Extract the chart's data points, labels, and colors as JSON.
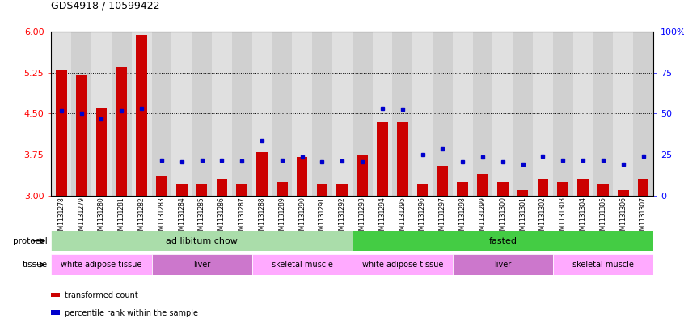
{
  "title": "GDS4918 / 10599422",
  "samples": [
    "GSM1131278",
    "GSM1131279",
    "GSM1131280",
    "GSM1131281",
    "GSM1131282",
    "GSM1131283",
    "GSM1131284",
    "GSM1131285",
    "GSM1131286",
    "GSM1131287",
    "GSM1131288",
    "GSM1131289",
    "GSM1131290",
    "GSM1131291",
    "GSM1131292",
    "GSM1131293",
    "GSM1131294",
    "GSM1131295",
    "GSM1131296",
    "GSM1131297",
    "GSM1131298",
    "GSM1131299",
    "GSM1131300",
    "GSM1131301",
    "GSM1131302",
    "GSM1131303",
    "GSM1131304",
    "GSM1131305",
    "GSM1131306",
    "GSM1131307"
  ],
  "bar_values": [
    5.3,
    5.2,
    4.6,
    5.35,
    5.95,
    3.35,
    3.2,
    3.2,
    3.3,
    3.2,
    3.8,
    3.25,
    3.7,
    3.2,
    3.2,
    3.75,
    4.35,
    4.35,
    3.2,
    3.55,
    3.25,
    3.4,
    3.25,
    3.1,
    3.3,
    3.25,
    3.3,
    3.2,
    3.1,
    3.3
  ],
  "blue_values": [
    4.55,
    4.5,
    4.4,
    4.55,
    4.6,
    3.65,
    3.62,
    3.65,
    3.65,
    3.63,
    4.0,
    3.65,
    3.7,
    3.62,
    3.63,
    3.62,
    4.6,
    4.58,
    3.75,
    3.85,
    3.62,
    3.7,
    3.62,
    3.58,
    3.72,
    3.65,
    3.65,
    3.65,
    3.58,
    3.72
  ],
  "ylim_left": [
    3.0,
    6.0
  ],
  "yticks_left": [
    3.0,
    3.75,
    4.5,
    5.25,
    6.0
  ],
  "yticks_right": [
    0,
    25,
    50,
    75,
    100
  ],
  "bar_color": "#cc0000",
  "dot_color": "#0000cc",
  "protocol_regions": [
    {
      "label": "ad libitum chow",
      "start": 0,
      "end": 14,
      "color": "#aaddaa"
    },
    {
      "label": "fasted",
      "start": 15,
      "end": 29,
      "color": "#44cc44"
    }
  ],
  "tissue_regions": [
    {
      "label": "white adipose tissue",
      "start": 0,
      "end": 4,
      "color": "#ffaaff"
    },
    {
      "label": "liver",
      "start": 5,
      "end": 9,
      "color": "#dd88dd"
    },
    {
      "label": "skeletal muscle",
      "start": 10,
      "end": 14,
      "color": "#ffaaff"
    },
    {
      "label": "white adipose tissue",
      "start": 15,
      "end": 19,
      "color": "#ffaaff"
    },
    {
      "label": "liver",
      "start": 20,
      "end": 24,
      "color": "#dd88dd"
    },
    {
      "label": "skeletal muscle",
      "start": 25,
      "end": 29,
      "color": "#ffaaff"
    }
  ],
  "legend_items": [
    {
      "label": "transformed count",
      "color": "#cc0000"
    },
    {
      "label": "percentile rank within the sample",
      "color": "#0000cc"
    }
  ],
  "col_colors": [
    "#e0e0e0",
    "#d0d0d0"
  ]
}
